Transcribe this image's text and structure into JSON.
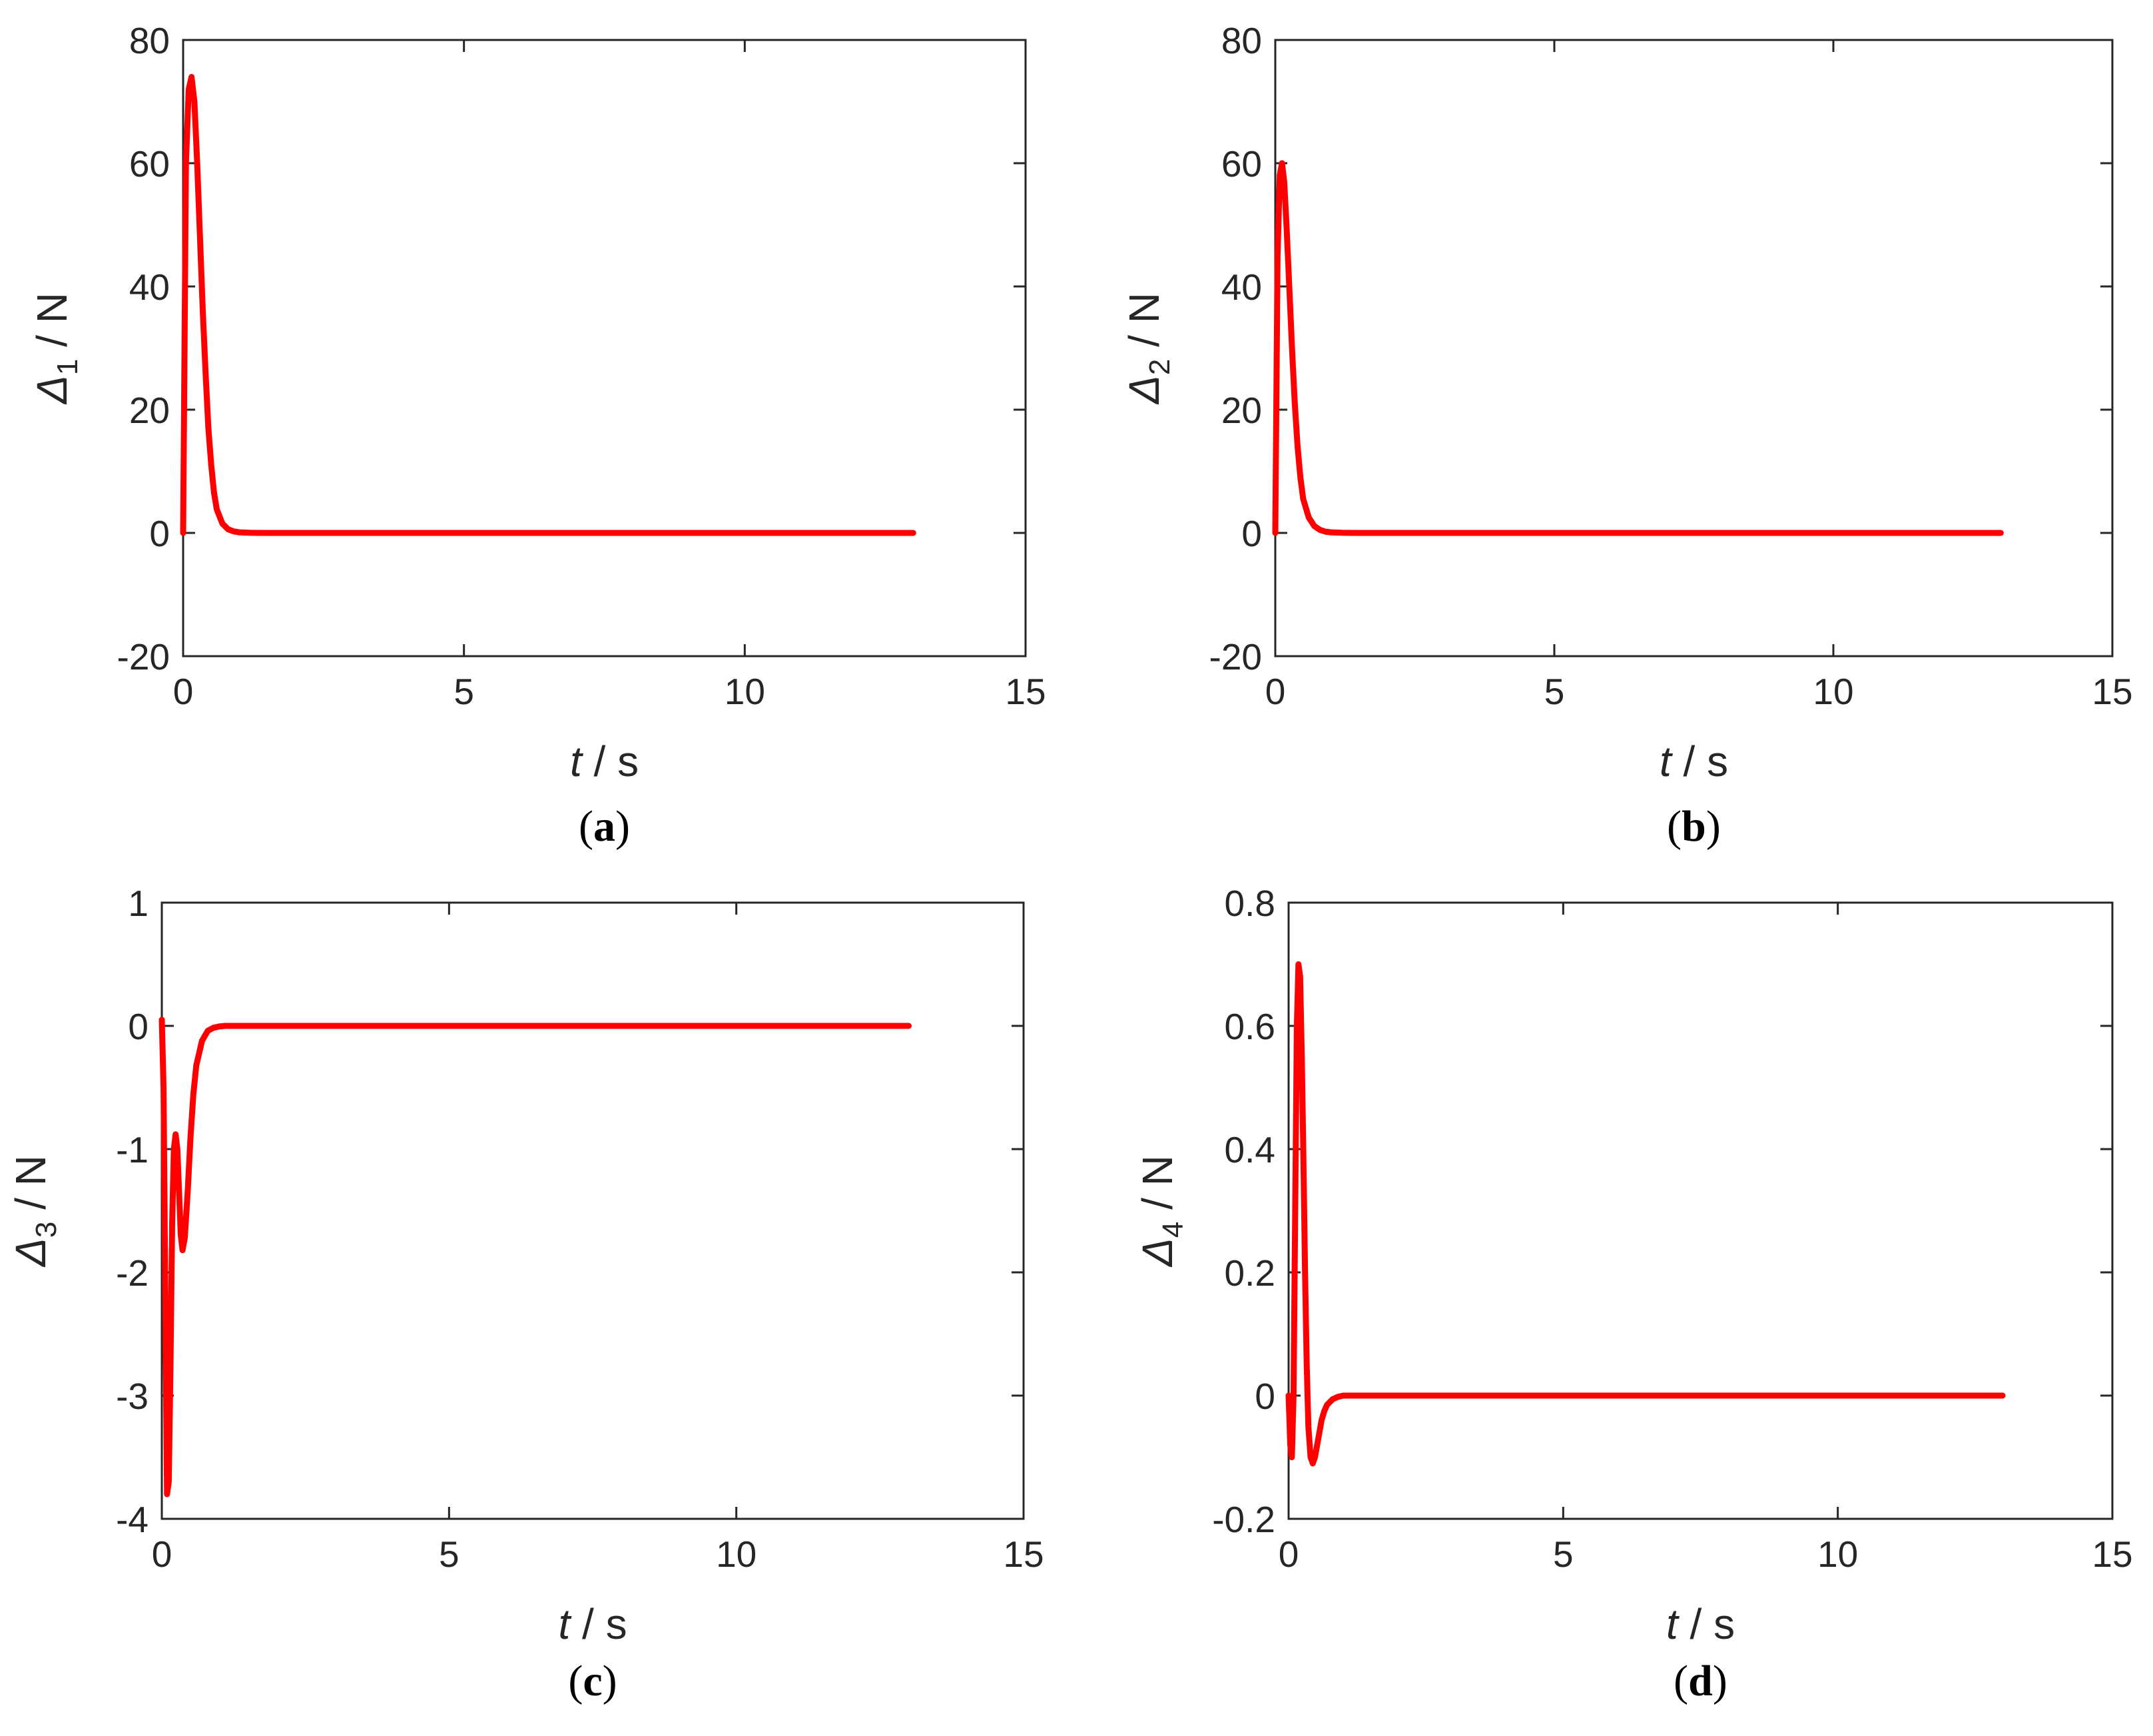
{
  "colors": {
    "line": "#ff0000",
    "axis": "#262626",
    "text": "#262626"
  },
  "chart_data": [
    {
      "type": "line",
      "panel": "a",
      "caption": {
        "open": "(",
        "letter": "a",
        "close": ")"
      },
      "xlabel": {
        "var": "t",
        "unit": " / s"
      },
      "ylabel": {
        "sym": "Δ",
        "sub": "1",
        "unit": " / N"
      },
      "xlim": [
        0,
        15
      ],
      "ylim": [
        -20,
        80
      ],
      "xticks": [
        0,
        5,
        10,
        15
      ],
      "xtick_labels": [
        "0",
        "5",
        "10",
        "15"
      ],
      "yticks": [
        -20,
        0,
        20,
        40,
        60,
        80
      ],
      "ytick_labels": [
        "-20",
        "0",
        "20",
        "40",
        "60",
        "80"
      ],
      "grid": false,
      "series": [
        {
          "x": [
            0,
            0.05,
            0.1,
            0.15,
            0.2,
            0.25,
            0.3,
            0.35,
            0.4,
            0.45,
            0.5,
            0.55,
            0.6,
            0.7,
            0.8,
            0.9,
            1.0,
            1.2,
            1.5,
            2,
            3,
            5,
            8,
            10,
            13
          ],
          "y": [
            0,
            60,
            72,
            74,
            70,
            60,
            48,
            36,
            26,
            17,
            11,
            6.5,
            3.8,
            1.5,
            0.6,
            0.25,
            0.1,
            0.02,
            0,
            0,
            0,
            0,
            0,
            0,
            0
          ]
        }
      ]
    },
    {
      "type": "line",
      "panel": "b",
      "caption": {
        "open": "(",
        "letter": "b",
        "close": ")"
      },
      "xlabel": {
        "var": "t",
        "unit": " / s"
      },
      "ylabel": {
        "sym": "Δ",
        "sub": "2",
        "unit": " / N"
      },
      "xlim": [
        0,
        15
      ],
      "ylim": [
        -20,
        80
      ],
      "xticks": [
        0,
        5,
        10,
        15
      ],
      "xtick_labels": [
        "0",
        "5",
        "10",
        "15"
      ],
      "yticks": [
        -20,
        0,
        20,
        40,
        60,
        80
      ],
      "ytick_labels": [
        "-20",
        "0",
        "20",
        "40",
        "60",
        "80"
      ],
      "grid": false,
      "series": [
        {
          "x": [
            0,
            0.04,
            0.08,
            0.12,
            0.16,
            0.2,
            0.25,
            0.3,
            0.35,
            0.4,
            0.45,
            0.5,
            0.6,
            0.7,
            0.8,
            0.9,
            1.0,
            1.2,
            1.5,
            2,
            3,
            5,
            8,
            10,
            13
          ],
          "y": [
            0,
            45,
            58,
            60,
            57,
            50,
            40,
            30,
            21,
            14,
            9,
            5.5,
            2.5,
            1.1,
            0.5,
            0.2,
            0.1,
            0.02,
            0,
            0,
            0,
            0,
            0,
            0,
            0
          ]
        }
      ]
    },
    {
      "type": "line",
      "panel": "c",
      "caption": {
        "open": "(",
        "letter": "c",
        "close": ")"
      },
      "xlabel": {
        "var": "t",
        "unit": " / s"
      },
      "ylabel": {
        "sym": "Δ",
        "sub": "3",
        "unit": " / N"
      },
      "xlim": [
        0,
        15
      ],
      "ylim": [
        -4,
        1
      ],
      "xticks": [
        0,
        5,
        10,
        15
      ],
      "xtick_labels": [
        "0",
        "5",
        "10",
        "15"
      ],
      "yticks": [
        -4,
        -3,
        -2,
        -1,
        0,
        1
      ],
      "ytick_labels": [
        "-4",
        "-3",
        "-2",
        "-1",
        "0",
        "1"
      ],
      "grid": false,
      "series": [
        {
          "x": [
            0,
            0.03,
            0.06,
            0.09,
            0.12,
            0.15,
            0.18,
            0.21,
            0.24,
            0.27,
            0.3,
            0.33,
            0.36,
            0.4,
            0.45,
            0.5,
            0.55,
            0.6,
            0.7,
            0.8,
            0.9,
            1.0,
            1.1,
            1.2,
            1.4,
            1.6,
            2,
            3,
            5,
            8,
            10,
            13
          ],
          "y": [
            0.05,
            -0.5,
            -2.2,
            -3.8,
            -3.7,
            -2.8,
            -1.6,
            -1.0,
            -0.88,
            -1.0,
            -1.35,
            -1.7,
            -1.82,
            -1.72,
            -1.35,
            -0.9,
            -0.55,
            -0.32,
            -0.12,
            -0.04,
            -0.015,
            -0.005,
            0,
            0,
            0,
            0,
            0,
            0,
            0,
            0,
            0,
            0
          ]
        }
      ]
    },
    {
      "type": "line",
      "panel": "d",
      "caption": {
        "open": "(",
        "letter": "d",
        "close": ")"
      },
      "xlabel": {
        "var": "t",
        "unit": " / s"
      },
      "ylabel": {
        "sym": "Δ",
        "sub": "4",
        "unit": " / N"
      },
      "xlim": [
        0,
        15
      ],
      "ylim": [
        -0.2,
        0.8
      ],
      "xticks": [
        0,
        5,
        10,
        15
      ],
      "xtick_labels": [
        "0",
        "5",
        "10",
        "15"
      ],
      "yticks": [
        -0.2,
        0,
        0.2,
        0.4,
        0.6,
        0.8
      ],
      "ytick_labels": [
        "-0.2",
        "0",
        "0.2",
        "0.4",
        "0.6",
        "0.8"
      ],
      "grid": false,
      "series": [
        {
          "x": [
            0,
            0.03,
            0.06,
            0.09,
            0.12,
            0.15,
            0.18,
            0.21,
            0.24,
            0.27,
            0.3,
            0.33,
            0.36,
            0.4,
            0.44,
            0.48,
            0.52,
            0.56,
            0.6,
            0.65,
            0.7,
            0.8,
            0.9,
            1.0,
            1.2,
            1.5,
            2,
            3,
            5,
            8,
            10,
            13
          ],
          "y": [
            0,
            -0.08,
            -0.1,
            0.0,
            0.3,
            0.6,
            0.7,
            0.68,
            0.55,
            0.38,
            0.2,
            0.05,
            -0.05,
            -0.1,
            -0.11,
            -0.1,
            -0.08,
            -0.06,
            -0.04,
            -0.025,
            -0.015,
            -0.006,
            -0.002,
            0,
            0,
            0,
            0,
            0,
            0,
            0,
            0,
            0
          ]
        }
      ]
    }
  ]
}
